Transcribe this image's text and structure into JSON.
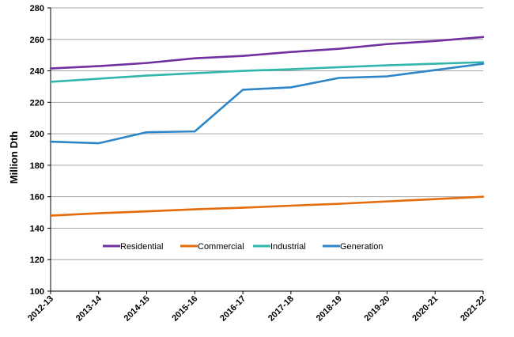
{
  "chart_data": {
    "type": "line",
    "title": "",
    "xlabel": "",
    "ylabel": "Million Dth",
    "ylim": [
      100,
      280
    ],
    "yticks": [
      100,
      120,
      140,
      160,
      180,
      200,
      220,
      240,
      260,
      280
    ],
    "grid": true,
    "legend_position": "bottom-center-inside",
    "categories": [
      "2012-13",
      "2013-14",
      "2014-15",
      "2015-16",
      "2016-17",
      "2017-18",
      "2018-19",
      "2019-20",
      "2020-21",
      "2021-22"
    ],
    "series": [
      {
        "name": "Residential",
        "color": "#7030a0",
        "values": [
          241.5,
          243,
          245,
          248,
          249.5,
          252,
          254,
          257,
          259,
          261.5
        ]
      },
      {
        "name": "Commercial",
        "color": "#e46c0a",
        "values": [
          148,
          149.5,
          150.7,
          152,
          153,
          154.3,
          155.5,
          157,
          158.5,
          160
        ]
      },
      {
        "name": "Industrial",
        "color": "#31b6ac",
        "values": [
          233,
          235,
          237,
          238.5,
          240,
          241,
          242.3,
          243.5,
          244.5,
          245.5
        ]
      },
      {
        "name": "Generation",
        "color": "#2e86c8",
        "values": [
          195,
          194,
          201,
          201.5,
          228,
          229.5,
          235.5,
          236.5,
          240.5,
          244.5
        ]
      }
    ]
  }
}
